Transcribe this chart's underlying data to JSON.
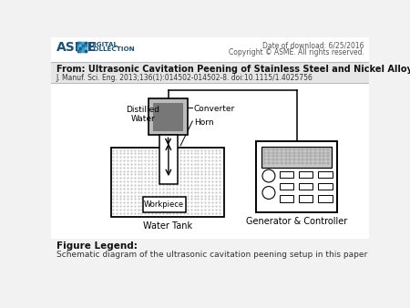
{
  "header_line1": "Date of download: 6/25/2016",
  "header_line2": "Copyright © ASME. All rights reserved.",
  "from_title": "From: Ultrasonic Cavitation Peening of Stainless Steel and Nickel Alloy",
  "journal_ref": "J. Manuf. Sci. Eng. 2013;136(1):014502-014502-8. doi:10.1115/1.4025756",
  "figure_legend_title": "Figure Legend:",
  "figure_legend_text": "Schematic diagram of the ultrasonic cavitation peening setup in this paper",
  "bg_color": "#f2f2f2",
  "white": "#ffffff",
  "black": "#000000",
  "asme_blue": "#1a5276",
  "gray_light": "#d0d0d0",
  "gray_mid": "#999999",
  "gray_dark": "#666666",
  "header_text_color": "#555555",
  "body_text_color": "#111111"
}
